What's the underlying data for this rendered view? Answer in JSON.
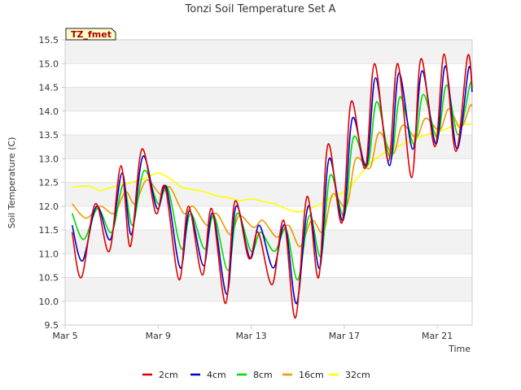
{
  "chart_data": {
    "type": "line",
    "title": "Tonzi Soil Temperature Set A",
    "xlabel": "Time",
    "ylabel": "Soil Temperature (C)",
    "badge": "TZ_fmet",
    "xlim": [
      5,
      22.5
    ],
    "ylim": [
      9.5,
      15.5
    ],
    "y_ticks": [
      9.5,
      10.0,
      10.5,
      11.0,
      11.5,
      12.0,
      12.5,
      13.0,
      13.5,
      14.0,
      14.5,
      15.0,
      15.5
    ],
    "x_ticks": [
      {
        "value": 5,
        "label": "Mar 5"
      },
      {
        "value": 9,
        "label": "Mar 9"
      },
      {
        "value": 13,
        "label": "Mar 13"
      },
      {
        "value": 17,
        "label": "Mar 17"
      },
      {
        "value": 21,
        "label": "Mar 21"
      }
    ],
    "grid": "horizontal bands",
    "legend_position": "bottom",
    "series": [
      {
        "name": "2cm",
        "color": "#dd0000",
        "x": [
          5.3,
          5.7,
          6.3,
          6.9,
          7.4,
          7.8,
          8.3,
          8.9,
          9.3,
          9.9,
          10.3,
          10.9,
          11.3,
          11.9,
          12.3,
          12.9,
          13.3,
          13.9,
          14.4,
          14.9,
          15.4,
          15.9,
          16.3,
          16.9,
          17.3,
          17.9,
          18.3,
          18.9,
          19.3,
          19.9,
          20.3,
          20.9,
          21.3,
          21.8,
          22.3,
          22.5
        ],
        "y": [
          11.45,
          10.5,
          12.05,
          11.05,
          12.85,
          11.15,
          13.2,
          11.85,
          12.4,
          10.45,
          12.0,
          10.55,
          11.95,
          9.95,
          12.1,
          10.9,
          11.45,
          10.35,
          11.7,
          9.65,
          12.2,
          10.5,
          13.3,
          11.65,
          14.2,
          12.8,
          15.0,
          12.95,
          15.0,
          12.6,
          15.1,
          13.25,
          15.2,
          13.15,
          15.15,
          14.5
        ]
      },
      {
        "name": "4cm",
        "color": "#0000cc",
        "x": [
          5.3,
          5.75,
          6.35,
          6.95,
          7.45,
          7.85,
          8.35,
          8.95,
          9.35,
          9.95,
          10.35,
          10.95,
          11.35,
          11.95,
          12.35,
          12.95,
          13.35,
          13.95,
          14.45,
          14.95,
          15.45,
          15.95,
          16.35,
          16.95,
          17.35,
          17.95,
          18.35,
          18.95,
          19.35,
          19.95,
          20.35,
          20.95,
          21.35,
          21.85,
          22.35,
          22.5
        ],
        "y": [
          11.6,
          10.85,
          12.0,
          11.3,
          12.7,
          11.4,
          13.05,
          11.95,
          12.4,
          10.7,
          11.9,
          10.75,
          11.85,
          10.15,
          12.0,
          10.9,
          11.6,
          10.7,
          11.6,
          9.95,
          12.0,
          10.7,
          13.0,
          11.7,
          13.85,
          12.85,
          14.7,
          12.85,
          14.8,
          13.2,
          14.85,
          13.3,
          14.95,
          13.2,
          14.9,
          14.4
        ]
      },
      {
        "name": "8cm",
        "color": "#00dd00",
        "x": [
          5.3,
          5.8,
          6.4,
          7.0,
          7.5,
          7.9,
          8.4,
          9.0,
          9.4,
          10.0,
          10.4,
          11.0,
          11.4,
          12.0,
          12.4,
          13.0,
          13.4,
          14.0,
          14.5,
          15.0,
          15.5,
          16.0,
          16.4,
          17.0,
          17.4,
          18.0,
          18.4,
          19.0,
          19.4,
          20.0,
          20.4,
          21.0,
          21.4,
          21.9,
          22.4,
          22.5
        ],
        "y": [
          11.85,
          11.3,
          11.95,
          11.45,
          12.45,
          11.6,
          12.75,
          12.05,
          12.4,
          11.1,
          11.85,
          11.1,
          11.8,
          10.65,
          11.85,
          11.05,
          11.45,
          11.05,
          11.5,
          10.45,
          11.8,
          10.95,
          12.65,
          11.8,
          13.45,
          12.85,
          14.2,
          13.0,
          14.3,
          13.3,
          14.35,
          13.45,
          14.55,
          13.5,
          14.55,
          14.5
        ]
      },
      {
        "name": "16cm",
        "color": "#ee9900",
        "x": [
          5.3,
          5.9,
          6.5,
          7.1,
          7.6,
          8.0,
          8.5,
          9.1,
          9.5,
          10.1,
          10.5,
          11.1,
          11.5,
          12.1,
          12.5,
          13.1,
          13.5,
          14.1,
          14.6,
          15.1,
          15.6,
          16.1,
          16.5,
          17.1,
          17.5,
          18.1,
          18.5,
          19.1,
          19.5,
          20.1,
          20.5,
          21.1,
          21.5,
          22.0,
          22.4,
          22.5
        ],
        "y": [
          12.05,
          11.75,
          12.0,
          11.85,
          12.3,
          12.05,
          12.55,
          12.25,
          12.4,
          11.85,
          12.0,
          11.6,
          11.85,
          11.4,
          11.8,
          11.55,
          11.7,
          11.35,
          11.6,
          11.15,
          11.7,
          11.45,
          12.25,
          12.0,
          13.0,
          12.8,
          13.55,
          13.1,
          13.7,
          13.45,
          13.85,
          13.6,
          14.05,
          13.65,
          14.1,
          14.1
        ]
      },
      {
        "name": "32cm",
        "color": "#ffff00",
        "x": [
          5.3,
          6.0,
          6.5,
          7.0,
          7.5,
          8.0,
          8.5,
          9.0,
          9.5,
          10.0,
          10.5,
          11.0,
          11.5,
          12.0,
          12.5,
          13.0,
          13.5,
          14.0,
          14.5,
          15.0,
          15.5,
          16.0,
          16.5,
          17.0,
          17.5,
          18.0,
          18.5,
          19.0,
          19.5,
          20.0,
          20.5,
          21.0,
          21.5,
          22.0,
          22.5
        ],
        "y": [
          12.4,
          12.42,
          12.33,
          12.4,
          12.45,
          12.52,
          12.6,
          12.7,
          12.58,
          12.4,
          12.35,
          12.3,
          12.22,
          12.18,
          12.12,
          12.15,
          12.1,
          12.05,
          11.95,
          11.88,
          11.95,
          12.05,
          12.2,
          12.3,
          12.55,
          12.85,
          13.05,
          13.2,
          13.3,
          13.4,
          13.5,
          13.55,
          13.65,
          13.72,
          13.72
        ]
      }
    ]
  }
}
